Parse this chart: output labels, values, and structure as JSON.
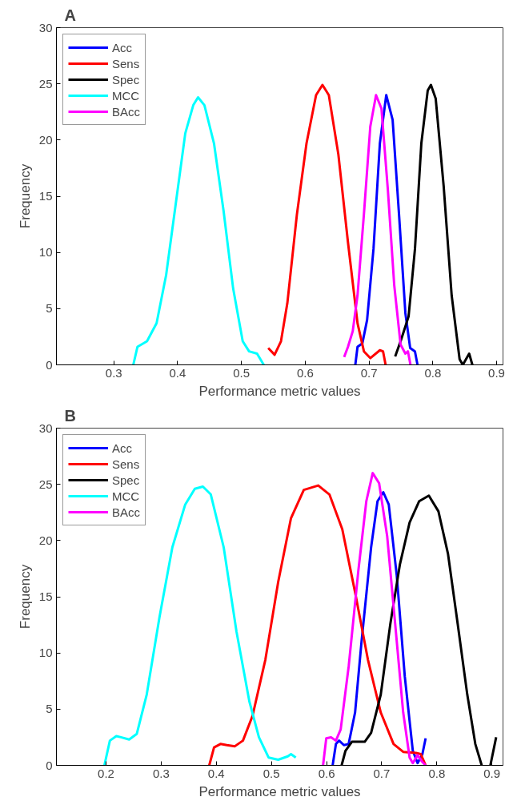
{
  "chart_data": [
    {
      "type": "line",
      "title": "A",
      "xlabel": "Performance metric values",
      "ylabel": "Frequency",
      "xlim": [
        0.21,
        0.91
      ],
      "ylim": [
        0,
        30
      ],
      "xticks": [
        0.3,
        0.4,
        0.5,
        0.6,
        0.7,
        0.8,
        0.9
      ],
      "yticks": [
        0,
        5,
        10,
        15,
        20,
        25,
        30
      ],
      "grid": false,
      "legend": "top left",
      "marker": "none",
      "line_style": "solid",
      "series": [
        {
          "name": "Acc",
          "color": "#0000ff",
          "x": [
            0.6785,
            0.682,
            0.6895,
            0.697,
            0.707,
            0.717,
            0.727,
            0.737,
            0.747,
            0.757,
            0.7645,
            0.772,
            0.776
          ],
          "values": [
            0,
            1.6,
            1.9,
            4,
            10.3,
            19.7,
            24,
            21.8,
            13.4,
            4.6,
            1.5,
            1.2,
            0
          ]
        },
        {
          "name": "Sens",
          "color": "#ff0000",
          "x": [
            0.542,
            0.552,
            0.562,
            0.572,
            0.587,
            0.602,
            0.617,
            0.627,
            0.637,
            0.652,
            0.667,
            0.682,
            0.692,
            0.702,
            0.717,
            0.722,
            0.726
          ],
          "values": [
            1.5,
            0.9,
            2.1,
            5.5,
            13.4,
            19.7,
            24,
            24.9,
            24,
            18.7,
            10.9,
            3.7,
            1.2,
            0.6,
            1.3,
            1.2,
            0
          ]
        },
        {
          "name": "Spec",
          "color": "#000000",
          "x": [
            0.741,
            0.7495,
            0.762,
            0.772,
            0.782,
            0.792,
            0.797,
            0.8045,
            0.817,
            0.8295,
            0.842,
            0.847,
            0.852,
            0.857,
            0.862
          ],
          "values": [
            0.75,
            2.1,
            4.3,
            10.3,
            19.7,
            24.4,
            24.9,
            23.7,
            15.9,
            6.2,
            0.5,
            0,
            0.5,
            1,
            0
          ]
        },
        {
          "name": "MCC",
          "color": "#00ffff",
          "x": [
            0.3305,
            0.337,
            0.352,
            0.367,
            0.382,
            0.397,
            0.412,
            0.4245,
            0.432,
            0.442,
            0.457,
            0.472,
            0.487,
            0.502,
            0.512,
            0.5245,
            0.535
          ],
          "values": [
            0,
            1.6,
            2.1,
            3.7,
            8,
            14.3,
            20.6,
            23.1,
            23.8,
            23.1,
            19.7,
            13.7,
            6.8,
            2.1,
            1.2,
            1,
            0
          ]
        },
        {
          "name": "BAcc",
          "color": "#ff00ff",
          "x": [
            0.661,
            0.667,
            0.6745,
            0.682,
            0.692,
            0.702,
            0.711,
            0.7195,
            0.7295,
            0.7395,
            0.7495,
            0.757,
            0.761,
            0.765
          ],
          "values": [
            0.7,
            1.6,
            3,
            6.2,
            13.4,
            21.2,
            24,
            22.8,
            15.6,
            7.1,
            1.8,
            1,
            1.2,
            0
          ]
        }
      ]
    },
    {
      "type": "line",
      "title": "B",
      "xlabel": "Performance metric values",
      "ylabel": "Frequency",
      "xlim": [
        0.11,
        0.92
      ],
      "ylim": [
        0,
        30
      ],
      "xticks": [
        0.2,
        0.3,
        0.4,
        0.5,
        0.6,
        0.7,
        0.8,
        0.9
      ],
      "yticks": [
        0,
        5,
        10,
        15,
        20,
        25,
        30
      ],
      "grid": false,
      "legend": "top left",
      "marker": "none",
      "line_style": "solid",
      "series": [
        {
          "name": "Acc",
          "color": "#0000ff",
          "x": [
            0.611,
            0.617,
            0.6227,
            0.6314,
            0.64,
            0.6517,
            0.6634,
            0.6808,
            0.6924,
            0.7029,
            0.7128,
            0.7273,
            0.7419,
            0.7564,
            0.7651,
            0.7738,
            0.7797
          ],
          "values": [
            0,
            1.9,
            2.2,
            1.8,
            1.9,
            4.7,
            11,
            19.4,
            23.5,
            24.3,
            23.2,
            16.9,
            7.9,
            1.3,
            0.2,
            1,
            2.4
          ]
        },
        {
          "name": "Sens",
          "color": "#ff0000",
          "x": [
            0.3872,
            0.3959,
            0.4076,
            0.4192,
            0.4337,
            0.4483,
            0.4657,
            0.489,
            0.5122,
            0.5355,
            0.5587,
            0.5849,
            0.6052,
            0.6285,
            0.6517,
            0.675,
            0.6983,
            0.7215,
            0.739,
            0.7622,
            0.771,
            0.7797
          ],
          "values": [
            0,
            1.6,
            1.9,
            1.8,
            1.7,
            2.2,
            4.4,
            9.4,
            16.3,
            22,
            24.5,
            24.9,
            24.1,
            21,
            15.4,
            9.4,
            4.7,
            1.9,
            1.2,
            1.1,
            1,
            0
          ]
        },
        {
          "name": "Spec",
          "color": "#000000",
          "x": [
            0.6273,
            0.6343,
            0.6459,
            0.6576,
            0.6692,
            0.6808,
            0.6983,
            0.7157,
            0.7331,
            0.7506,
            0.768,
            0.7855,
            0.8029,
            0.8203,
            0.8378,
            0.8552,
            0.8698,
            0.8814,
            0.889,
            0.8971,
            0.9076
          ],
          "values": [
            0,
            1.3,
            2.1,
            2.1,
            2.1,
            2.9,
            6.3,
            12.6,
            17.9,
            21.6,
            23.5,
            24,
            22.6,
            18.8,
            12.6,
            6.3,
            1.9,
            0,
            null,
            0,
            2.5
          ]
        },
        {
          "name": "MCC",
          "color": "#00ffff",
          "x": [
            0.197,
            0.207,
            0.2186,
            0.227,
            0.2419,
            0.2558,
            0.2738,
            0.297,
            0.3203,
            0.3436,
            0.361,
            0.3756,
            0.39,
            0.4134,
            0.4366,
            0.4599,
            0.4773,
            0.4948,
            0.5122,
            0.5297,
            0.5355,
            0.5442
          ],
          "values": [
            0,
            2.2,
            2.6,
            2.5,
            2.3,
            2.8,
            6.3,
            13.2,
            19.4,
            23.2,
            24.6,
            24.8,
            24.1,
            19.4,
            11.9,
            5.7,
            2.5,
            0.7,
            0.5,
            0.8,
            1,
            0.7
          ]
        },
        {
          "name": "BAcc",
          "color": "#ff00ff",
          "x": [
            0.5936,
            0.5994,
            0.6081,
            0.6169,
            0.6256,
            0.6401,
            0.6576,
            0.6721,
            0.6837,
            0.6953,
            0.7099,
            0.7244,
            0.739,
            0.7506,
            0.7564,
            0.7651,
            0.7738,
            0.7797
          ],
          "values": [
            0,
            2.4,
            2.5,
            2.2,
            3.2,
            8.8,
            17.3,
            23.5,
            26,
            25.1,
            20.4,
            12.6,
            4.7,
            0.7,
            0.2,
            0.9,
            0.3,
            0
          ]
        }
      ]
    }
  ]
}
